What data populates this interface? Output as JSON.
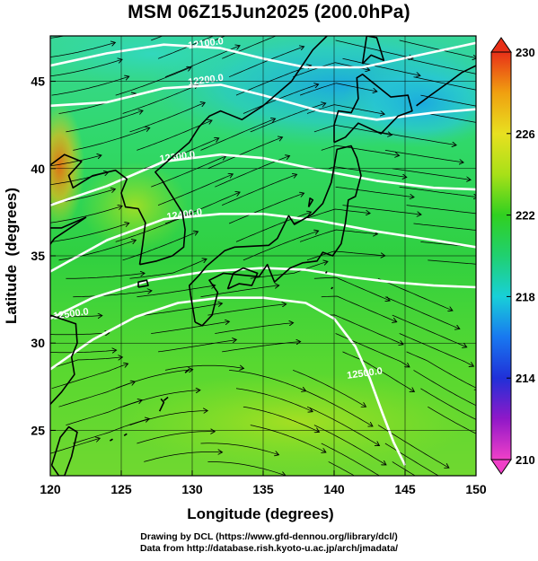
{
  "title": "MSM 06Z15Jun2025 (200.0hPa)",
  "chart_data": {
    "type": "map",
    "variable": "temperature with geopotential height contours and wind streamlines",
    "level": "200.0hPa",
    "xlabel": "Longitude (degrees)",
    "ylabel": "Latitude  (degrees)",
    "xlim": [
      120,
      150
    ],
    "ylim": [
      22.4,
      47.6
    ],
    "x_ticks": [
      "120",
      "125",
      "130",
      "135",
      "140",
      "145",
      "150"
    ],
    "x_tick_values": [
      120,
      125,
      130,
      135,
      140,
      145,
      150
    ],
    "y_ticks": [
      "25",
      "30",
      "35",
      "40",
      "45"
    ],
    "y_tick_values": [
      25,
      30,
      35,
      40,
      45
    ],
    "colorbar": {
      "min": 210,
      "max": 230,
      "tick_labels": [
        "230",
        "226",
        "222",
        "218",
        "214",
        "210"
      ],
      "tick_values": [
        230,
        226,
        222,
        218,
        214,
        210
      ],
      "colors": [
        "#f040c8",
        "#9018c8",
        "#2030d8",
        "#1878f0",
        "#18d0d8",
        "#20d070",
        "#30d020",
        "#a8e018",
        "#e8e020",
        "#f0a010",
        "#e83018"
      ]
    },
    "height_contours": [
      {
        "label": "12100.0",
        "lat_at_135": 46.3
      },
      {
        "label": "12200.0",
        "lat_at_135": 44.2
      },
      {
        "label": "12300.0",
        "lat_at_135": 40.6
      },
      {
        "label": "12400.0",
        "lat_at_135": 37.4
      },
      {
        "label": "12500.0",
        "lat_at_135": 34.3
      },
      {
        "label": "12500.0",
        "lat_at_135": 32.6
      }
    ],
    "grid": true
  },
  "credits": {
    "line1": "Drawing by DCL (https://www.gfd-dennou.org/library/dcl/)",
    "line2": "Data from http://database.rish.kyoto-u.ac.jp/arch/jmadata/"
  }
}
